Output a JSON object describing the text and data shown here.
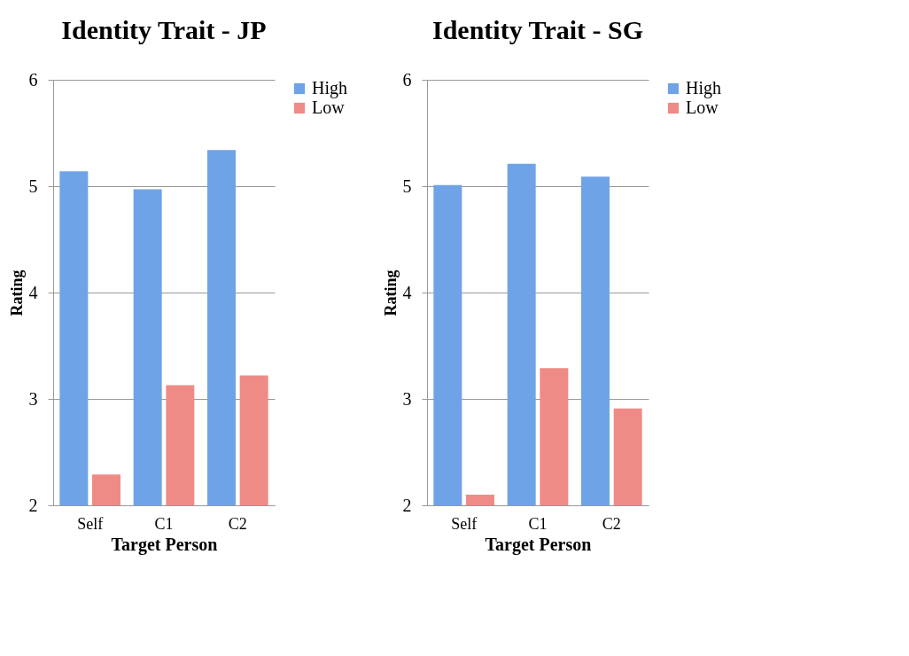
{
  "chart_data": [
    {
      "type": "bar",
      "title": "Identity Trait - JP",
      "xlabel": "Target Person",
      "ylabel": "Rating",
      "categories": [
        "Self",
        "C1",
        "C2"
      ],
      "series": [
        {
          "name": "High",
          "color": "#6fa3e8",
          "values": [
            5.14,
            4.97,
            5.34
          ]
        },
        {
          "name": "Low",
          "color": "#ef8b87",
          "values": [
            2.29,
            3.13,
            3.22
          ]
        }
      ],
      "ylim": [
        2,
        6
      ],
      "yticks": [
        2,
        3,
        4,
        5,
        6
      ],
      "grid": "y",
      "legend": "right"
    },
    {
      "type": "bar",
      "title": "Identity Trait - SG",
      "xlabel": "Target Person",
      "ylabel": "Rating",
      "categories": [
        "Self",
        "C1",
        "C2"
      ],
      "series": [
        {
          "name": "High",
          "color": "#6fa3e8",
          "values": [
            5.01,
            5.21,
            5.09
          ]
        },
        {
          "name": "Low",
          "color": "#ef8b87",
          "values": [
            2.1,
            3.29,
            2.91
          ]
        }
      ],
      "ylim": [
        2,
        6
      ],
      "yticks": [
        2,
        3,
        4,
        5,
        6
      ],
      "grid": "y",
      "legend": "right"
    }
  ]
}
